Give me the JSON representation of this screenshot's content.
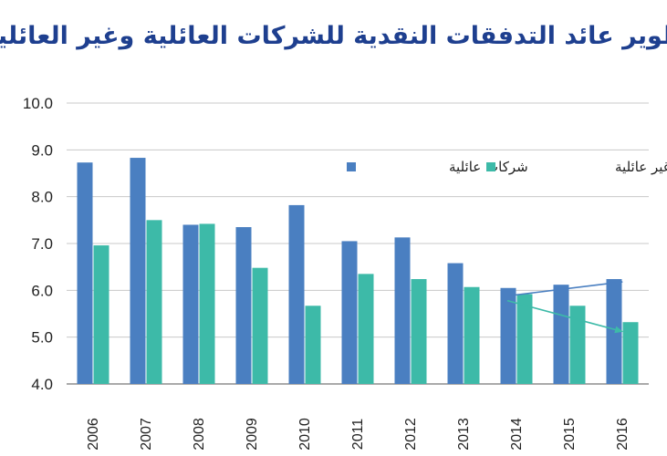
{
  "chart_data": {
    "type": "bar",
    "title": "تطوير عائد التدفقات النقدية للشركات العائلية وغير العائلية",
    "categories": [
      "2006",
      "2007",
      "2008",
      "2009",
      "2010",
      "2011",
      "2012",
      "2013",
      "2014",
      "2015",
      "2016"
    ],
    "series": [
      {
        "name": "شركات عائلية",
        "color": "#4a7fc1",
        "values": [
          8.73,
          8.83,
          7.4,
          7.35,
          7.82,
          7.05,
          7.13,
          6.58,
          6.05,
          6.12,
          6.24
        ]
      },
      {
        "name": "شركات غير عائلية",
        "color": "#3dbaa8",
        "values": [
          6.96,
          7.5,
          7.42,
          6.48,
          5.67,
          6.35,
          6.24,
          6.07,
          5.92,
          5.67,
          5.32
        ]
      }
    ],
    "ylim": [
      4.0,
      10.0
    ],
    "yticks": [
      "4.0",
      "5.0",
      "6.0",
      "7.0",
      "8.0",
      "9.0",
      "10.0"
    ],
    "grid": true,
    "legend_position": "top-right",
    "trend_arrows": [
      {
        "series": "شركات عائلية",
        "from": {
          "x": "2014",
          "y": 5.88
        },
        "to": {
          "x": "2016",
          "y": 6.18
        },
        "color": "#4a7fc1"
      },
      {
        "series": "شركات غير عائلية",
        "from": {
          "x": "2014",
          "y": 5.78
        },
        "to": {
          "x": "2016",
          "y": 5.12
        },
        "color": "#3dbaa8"
      }
    ]
  }
}
